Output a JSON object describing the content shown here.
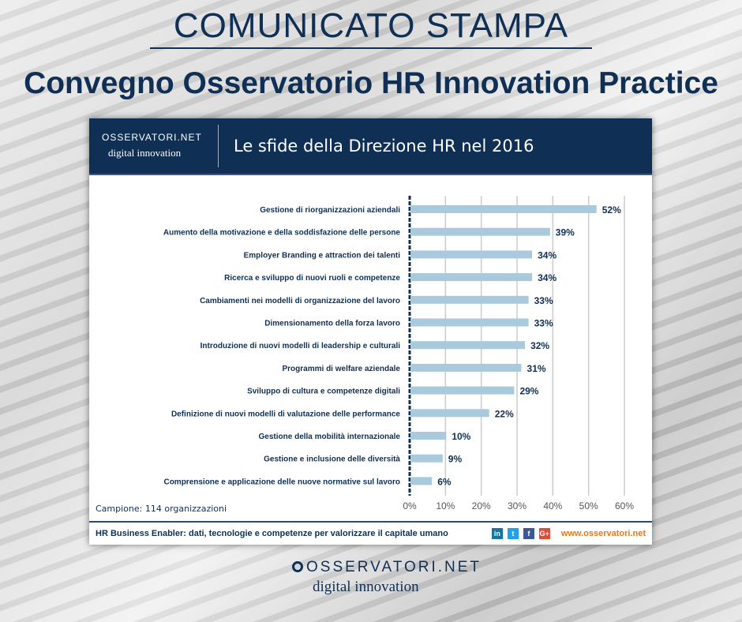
{
  "header": {
    "kicker": "COMUNICATO STAMPA",
    "title": "Convegno Osservatorio HR Innovation Practice"
  },
  "card": {
    "logo_line1": "OSSERVATORI.NET",
    "logo_line2": "digital innovation",
    "sample": "Campione: 114 organizzazioni",
    "footer_text": "HR Business Enabler: dati, tecnologie e competenze per valorizzare il capitale umano",
    "social": [
      "linkedin-icon",
      "twitter-icon",
      "facebook-icon",
      "google-plus-icon"
    ],
    "url": "www.osservatori.net"
  },
  "bottom_logo": {
    "line1": "OSSERVATORI.NET",
    "line2": "digital innovation"
  },
  "colors": {
    "navy": "#0f2f55",
    "bar": "#a9c9dc",
    "accent": "#e8771e"
  },
  "chart_data": {
    "type": "bar",
    "orientation": "horizontal",
    "title": "Le sfide della Direzione HR nel 2016",
    "categories": [
      "Gestione di riorganizzazioni aziendali",
      "Aumento della motivazione e della soddisfazione delle persone",
      "Employer Branding e attraction dei talenti",
      "Ricerca e sviluppo di nuovi ruoli e competenze",
      "Cambiamenti nei modelli di organizzazione del lavoro",
      "Dimensionamento della forza lavoro",
      "Introduzione di nuovi modelli di leadership e culturali",
      "Programmi di welfare aziendale",
      "Sviluppo di cultura e competenze digitali",
      "Definizione di nuovi modelli di valutazione delle performance",
      "Gestione della mobilità internazionale",
      "Gestione e inclusione delle diversità",
      "Comprensione e applicazione delle nuove normative sul lavoro"
    ],
    "values": [
      52,
      39,
      34,
      34,
      33,
      33,
      32,
      31,
      29,
      22,
      10,
      9,
      6
    ],
    "data_labels": [
      "52%",
      "39%",
      "34%",
      "34%",
      "33%",
      "33%",
      "32%",
      "31%",
      "29%",
      "22%",
      "10%",
      "9%",
      "6%"
    ],
    "xlim": [
      0,
      60
    ],
    "ticks": [
      "0%",
      "10%",
      "20%",
      "30%",
      "40%",
      "50%",
      "60%"
    ],
    "grid": true
  }
}
